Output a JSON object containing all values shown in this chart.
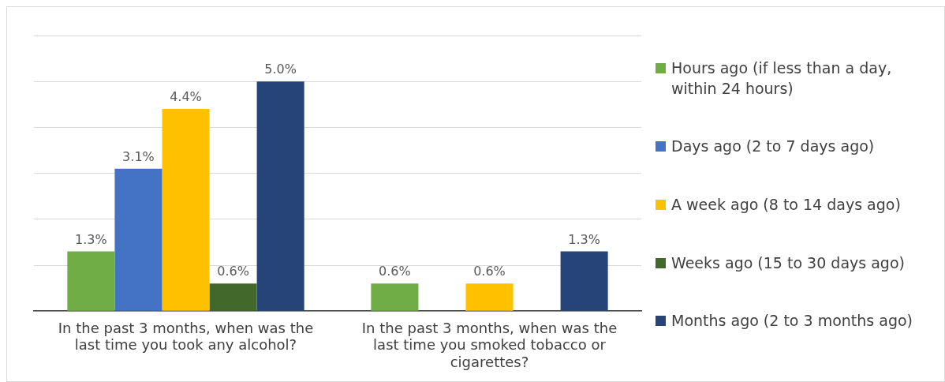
{
  "chart_data": {
    "type": "bar",
    "categories": [
      "In the past 3 months, when was the last time you took any alcohol?",
      "In the past 3 months, when was the last time you smoked tobacco or cigarettes?"
    ],
    "series": [
      {
        "name": "Hours ago (if less than a day, within 24 hours)",
        "color": "#70ad47",
        "values": [
          1.3,
          0.6
        ],
        "value_labels": [
          "1.3%",
          "0.6%"
        ]
      },
      {
        "name": "Days ago (2 to 7 days ago)",
        "color": "#4472c4",
        "values": [
          3.1,
          null
        ],
        "value_labels": [
          "3.1%",
          null
        ]
      },
      {
        "name": "A week ago (8 to 14 days ago)",
        "color": "#ffc000",
        "values": [
          4.4,
          0.6
        ],
        "value_labels": [
          "4.4%",
          "0.6%"
        ]
      },
      {
        "name": "Weeks ago (15 to 30 days ago)",
        "color": "#43682b",
        "values": [
          0.6,
          null
        ],
        "value_labels": [
          "0.6%",
          null
        ]
      },
      {
        "name": "Months ago (2 to 3 months ago)",
        "color": "#264478",
        "values": [
          5.0,
          1.3
        ],
        "value_labels": [
          "5.0%",
          "1.3%"
        ]
      }
    ],
    "ylim": [
      0,
      6
    ],
    "yticks": [
      0,
      1,
      2,
      3,
      4,
      5,
      6
    ],
    "grid": "y",
    "tick_labels": "x",
    "legend": "right"
  }
}
